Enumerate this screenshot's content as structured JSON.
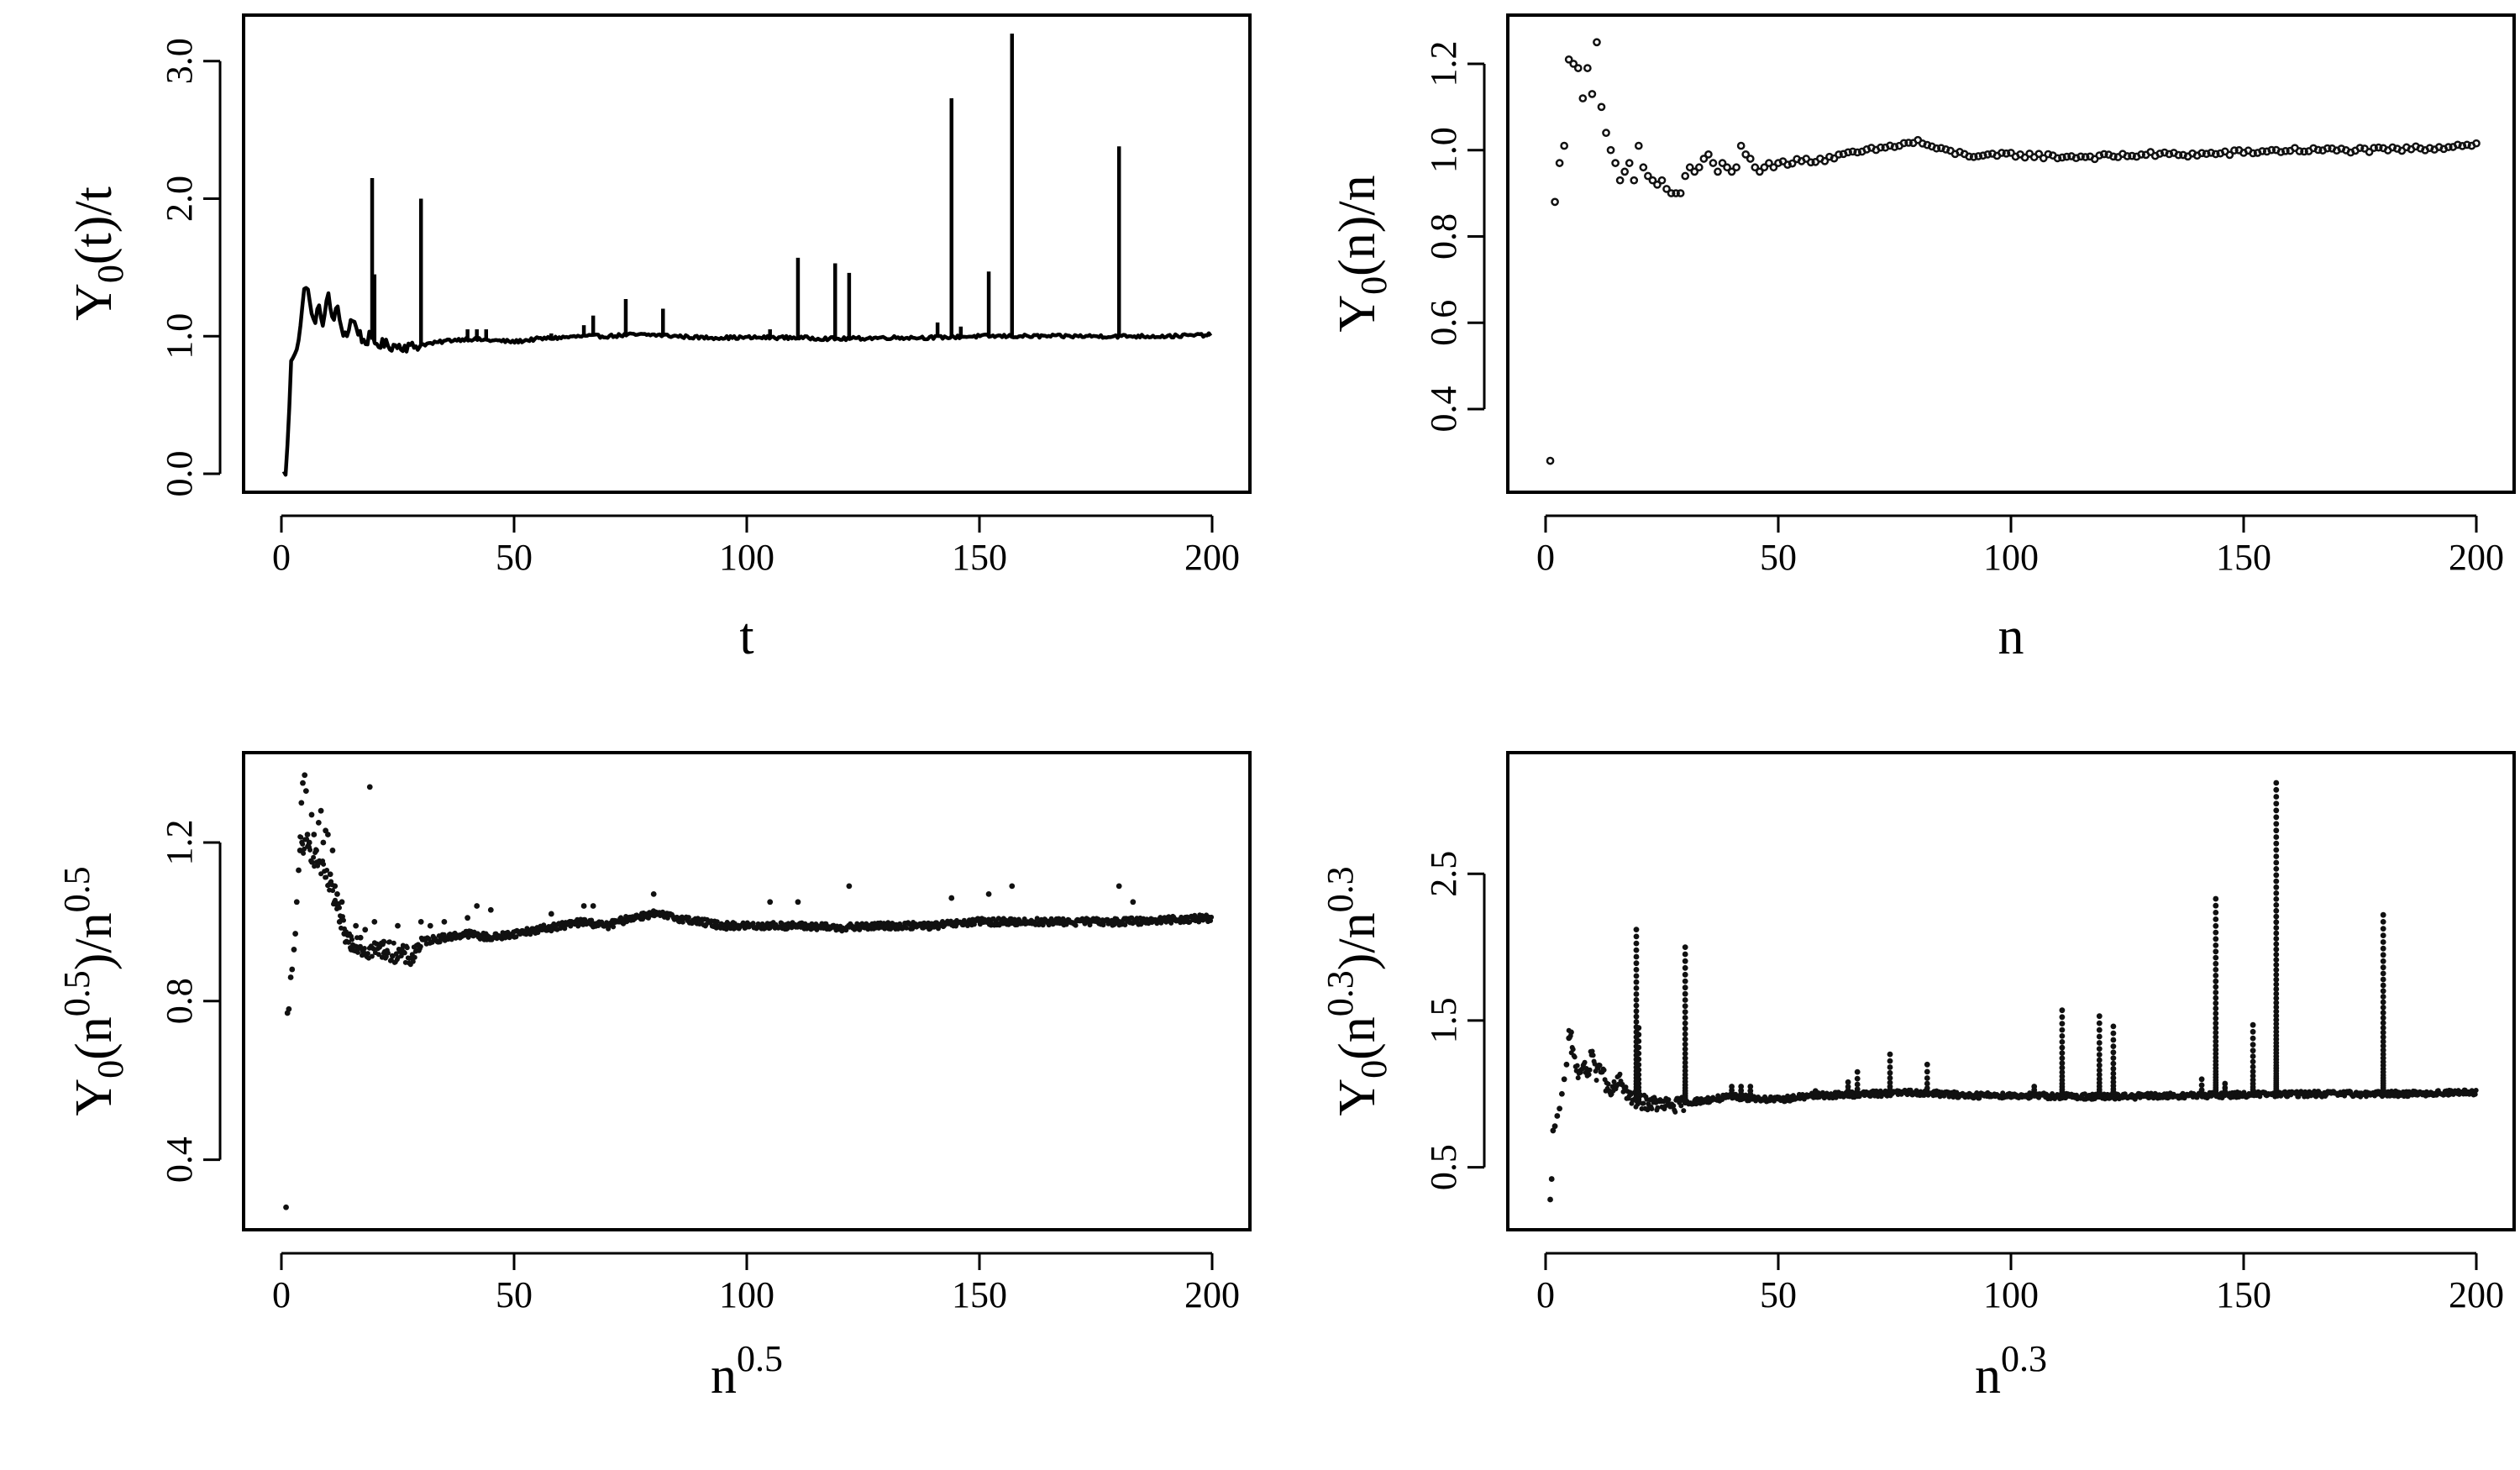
{
  "figure": {
    "panels": [
      {
        "id": "tl",
        "xlabel": {
          "text": "t"
        },
        "ylabel": {
          "base": "Y",
          "sub": "0",
          "mid": "(t)/t"
        },
        "xticks": [
          "0",
          "50",
          "100",
          "150",
          "200"
        ],
        "yticks": [
          "0.0",
          "1.0",
          "2.0",
          "3.0"
        ]
      },
      {
        "id": "tr",
        "xlabel": {
          "text": "n"
        },
        "ylabel": {
          "base": "Y",
          "sub": "0",
          "mid": "(n)/n"
        },
        "xticks": [
          "0",
          "50",
          "100",
          "150",
          "200"
        ],
        "yticks": [
          "0.4",
          "0.6",
          "0.8",
          "1.0",
          "1.2"
        ]
      },
      {
        "id": "bl",
        "xlabel": {
          "text": "n",
          "sup": "0.5"
        },
        "ylabel": {
          "base": "Y",
          "sub": "0",
          "p1": "(n",
          "sup": "0.5",
          "p2": ")/n",
          "sup2": "0.5"
        },
        "xticks": [
          "0",
          "50",
          "100",
          "150",
          "200"
        ],
        "yticks": [
          "0.4",
          "0.8",
          "1.2"
        ]
      },
      {
        "id": "br",
        "xlabel": {
          "text": "n",
          "sup": "0.3"
        },
        "ylabel": {
          "base": "Y",
          "sub": "0",
          "p1": "(n",
          "sup": "0.3",
          "p2": ")/n",
          "sup2": "0.3"
        },
        "xticks": [
          "0",
          "50",
          "100",
          "150",
          "200"
        ],
        "yticks": [
          "0.5",
          "1.5",
          "2.5"
        ]
      }
    ]
  },
  "chart_data": [
    {
      "type": "line",
      "xlabel": "t",
      "ylabel": "Y0(t)/t",
      "xlim": [
        0,
        200
      ],
      "ylim": [
        0.0,
        3.2
      ],
      "xticks": [
        0,
        50,
        100,
        150,
        200
      ],
      "yticks": [
        0.0,
        1.0,
        2.0,
        3.0
      ],
      "grid": false,
      "baseline": [
        [
          0.5,
          0.0
        ],
        [
          1,
          0.02
        ],
        [
          1.5,
          0.3
        ],
        [
          2,
          0.78
        ],
        [
          2.5,
          0.86
        ],
        [
          3,
          0.9
        ],
        [
          3.5,
          0.95
        ],
        [
          4,
          1.05
        ],
        [
          4.5,
          1.2
        ],
        [
          5,
          1.35
        ],
        [
          5.5,
          1.41
        ],
        [
          6,
          1.25
        ],
        [
          6.5,
          1.15
        ],
        [
          7,
          1.1
        ],
        [
          8,
          1.2
        ],
        [
          9,
          1.1
        ],
        [
          10,
          1.3
        ],
        [
          11,
          1.12
        ],
        [
          12,
          1.2
        ],
        [
          13,
          1.05
        ],
        [
          14,
          1.0
        ],
        [
          15,
          1.12
        ],
        [
          16,
          1.08
        ],
        [
          17,
          1.0
        ],
        [
          18,
          0.95
        ],
        [
          19,
          1.0
        ],
        [
          20,
          0.95
        ],
        [
          22,
          0.94
        ],
        [
          24,
          0.93
        ],
        [
          26,
          0.93
        ],
        [
          28,
          0.92
        ],
        [
          30,
          0.94
        ],
        [
          33,
          0.95
        ],
        [
          36,
          0.97
        ],
        [
          40,
          0.98
        ],
        [
          45,
          0.97
        ],
        [
          50,
          0.96
        ],
        [
          55,
          0.98
        ],
        [
          60,
          0.99
        ],
        [
          65,
          1.0
        ],
        [
          70,
          1.0
        ],
        [
          75,
          1.01
        ],
        [
          80,
          1.01
        ],
        [
          85,
          1.0
        ],
        [
          90,
          0.99
        ],
        [
          95,
          0.99
        ],
        [
          100,
          0.99
        ],
        [
          110,
          0.99
        ],
        [
          120,
          0.98
        ],
        [
          130,
          0.99
        ],
        [
          140,
          0.99
        ],
        [
          150,
          1.0
        ],
        [
          160,
          1.0
        ],
        [
          170,
          1.0
        ],
        [
          180,
          1.0
        ],
        [
          190,
          1.0
        ],
        [
          200,
          1.01
        ]
      ],
      "spikes": [
        [
          19.5,
          2.15
        ],
        [
          20,
          1.45
        ],
        [
          30,
          2.0
        ],
        [
          40,
          1.05
        ],
        [
          42,
          1.05
        ],
        [
          44,
          1.05
        ],
        [
          58,
          1.02
        ],
        [
          65,
          1.08
        ],
        [
          67,
          1.15
        ],
        [
          74,
          1.27
        ],
        [
          82,
          1.2
        ],
        [
          105,
          1.05
        ],
        [
          111,
          1.57
        ],
        [
          119,
          1.53
        ],
        [
          122,
          1.46
        ],
        [
          141,
          1.1
        ],
        [
          144,
          2.73
        ],
        [
          146,
          1.07
        ],
        [
          152,
          1.47
        ],
        [
          157,
          3.2
        ],
        [
          180,
          2.38
        ]
      ]
    },
    {
      "type": "scatter",
      "xlabel": "n",
      "ylabel": "Y0(n)/n",
      "xlim": [
        0,
        200
      ],
      "ylim": [
        0.25,
        1.27
      ],
      "xticks": [
        0,
        50,
        100,
        150,
        200
      ],
      "yticks": [
        0.4,
        0.6,
        0.8,
        1.0,
        1.2
      ],
      "grid": false,
      "early_points": [
        [
          1,
          0.28
        ],
        [
          2,
          0.88
        ],
        [
          3,
          0.97
        ],
        [
          4,
          1.01
        ],
        [
          5,
          1.21
        ],
        [
          6,
          1.2
        ],
        [
          7,
          1.19
        ],
        [
          8,
          1.12
        ],
        [
          9,
          1.19
        ],
        [
          10,
          1.13
        ],
        [
          11,
          1.25
        ],
        [
          12,
          1.1
        ],
        [
          13,
          1.04
        ],
        [
          14,
          1.0
        ],
        [
          15,
          0.97
        ],
        [
          16,
          0.93
        ],
        [
          17,
          0.95
        ],
        [
          18,
          0.97
        ],
        [
          19,
          0.93
        ],
        [
          20,
          1.01
        ],
        [
          21,
          0.96
        ],
        [
          22,
          0.94
        ],
        [
          23,
          0.93
        ],
        [
          24,
          0.92
        ],
        [
          25,
          0.93
        ],
        [
          26,
          0.91
        ],
        [
          27,
          0.9
        ],
        [
          28,
          0.9
        ],
        [
          29,
          0.9
        ],
        [
          30,
          0.94
        ],
        [
          31,
          0.96
        ],
        [
          32,
          0.95
        ],
        [
          33,
          0.96
        ],
        [
          34,
          0.98
        ],
        [
          35,
          0.99
        ],
        [
          36,
          0.97
        ],
        [
          37,
          0.95
        ],
        [
          38,
          0.97
        ],
        [
          39,
          0.96
        ],
        [
          40,
          0.95
        ],
        [
          41,
          0.96
        ],
        [
          42,
          1.01
        ],
        [
          43,
          0.99
        ],
        [
          44,
          0.98
        ],
        [
          45,
          0.96
        ],
        [
          46,
          0.95
        ],
        [
          47,
          0.96
        ],
        [
          48,
          0.97
        ],
        [
          49,
          0.96
        ],
        [
          50,
          0.97
        ]
      ],
      "trend": [
        [
          50,
          0.97
        ],
        [
          60,
          0.98
        ],
        [
          70,
          1.0
        ],
        [
          75,
          1.01
        ],
        [
          80,
          1.02
        ],
        [
          85,
          1.0
        ],
        [
          90,
          0.99
        ],
        [
          95,
          0.985
        ],
        [
          100,
          0.99
        ],
        [
          110,
          0.985
        ],
        [
          120,
          0.985
        ],
        [
          130,
          0.99
        ],
        [
          140,
          0.99
        ],
        [
          150,
          0.995
        ],
        [
          160,
          1.0
        ],
        [
          170,
          1.0
        ],
        [
          180,
          1.0
        ],
        [
          190,
          1.005
        ],
        [
          200,
          1.015
        ]
      ]
    },
    {
      "type": "scatter",
      "xlabel": "n^0.5",
      "ylabel": "Y0(n^0.5)/n^0.5",
      "xlim": [
        0,
        200
      ],
      "ylim": [
        0.27,
        1.38
      ],
      "xticks": [
        0,
        50,
        100,
        150,
        200
      ],
      "yticks": [
        0.4,
        0.8,
        1.2
      ],
      "grid": false,
      "early_points": [
        [
          1,
          0.28
        ],
        [
          1.3,
          0.77
        ],
        [
          1.6,
          0.78
        ],
        [
          2,
          0.86
        ],
        [
          2.3,
          0.88
        ],
        [
          2.7,
          0.93
        ],
        [
          3,
          0.97
        ],
        [
          3.3,
          1.05
        ],
        [
          3.7,
          1.13
        ],
        [
          4,
          1.18
        ],
        [
          4.3,
          1.3
        ],
        [
          4.6,
          1.35
        ],
        [
          5,
          1.37
        ],
        [
          5.3,
          1.33
        ],
        [
          5.6,
          1.22
        ],
        [
          6,
          1.2
        ],
        [
          6.5,
          1.27
        ],
        [
          7,
          1.22
        ],
        [
          7.5,
          1.18
        ],
        [
          8,
          1.25
        ],
        [
          8.5,
          1.28
        ],
        [
          9,
          1.2
        ],
        [
          9.5,
          1.23
        ],
        [
          10,
          1.22
        ],
        [
          10.5,
          1.12
        ],
        [
          11,
          1.18
        ],
        [
          11.5,
          1.09
        ],
        [
          12,
          1.07
        ],
        [
          12.5,
          1.0
        ],
        [
          13,
          1.05
        ],
        [
          13.5,
          0.97
        ],
        [
          14,
          0.95
        ],
        [
          15,
          0.93
        ],
        [
          16,
          0.99
        ],
        [
          17,
          0.96
        ],
        [
          18,
          0.98
        ],
        [
          19,
          1.34
        ],
        [
          20,
          1.0
        ],
        [
          22,
          0.95
        ],
        [
          25,
          0.99
        ],
        [
          30,
          1.0
        ],
        [
          32,
          0.99
        ],
        [
          35,
          1.0
        ],
        [
          40,
          1.01
        ],
        [
          42,
          1.04
        ],
        [
          45,
          1.03
        ],
        [
          58,
          1.02
        ],
        [
          65,
          1.04
        ],
        [
          67,
          1.04
        ],
        [
          80,
          1.07
        ],
        [
          105,
          1.05
        ],
        [
          111,
          1.05
        ],
        [
          122,
          1.09
        ],
        [
          144,
          1.06
        ],
        [
          152,
          1.07
        ],
        [
          157,
          1.09
        ],
        [
          180,
          1.09
        ],
        [
          183,
          1.05
        ]
      ],
      "trend": [
        [
          4,
          1.2
        ],
        [
          6,
          1.18
        ],
        [
          8,
          1.15
        ],
        [
          10,
          1.1
        ],
        [
          12,
          1.03
        ],
        [
          14,
          0.96
        ],
        [
          16,
          0.95
        ],
        [
          18,
          0.93
        ],
        [
          20,
          0.93
        ],
        [
          22,
          0.93
        ],
        [
          25,
          0.92
        ],
        [
          28,
          0.91
        ],
        [
          30,
          0.95
        ],
        [
          35,
          0.96
        ],
        [
          40,
          0.97
        ],
        [
          45,
          0.96
        ],
        [
          50,
          0.97
        ],
        [
          55,
          0.98
        ],
        [
          60,
          0.99
        ],
        [
          65,
          1.0
        ],
        [
          70,
          0.99
        ],
        [
          75,
          1.01
        ],
        [
          80,
          1.02
        ],
        [
          85,
          1.01
        ],
        [
          90,
          1.0
        ],
        [
          95,
          0.99
        ],
        [
          100,
          0.99
        ],
        [
          110,
          0.99
        ],
        [
          120,
          0.985
        ],
        [
          130,
          0.99
        ],
        [
          140,
          0.99
        ],
        [
          150,
          1.0
        ],
        [
          160,
          1.0
        ],
        [
          170,
          1.0
        ],
        [
          180,
          1.0
        ],
        [
          190,
          1.005
        ],
        [
          200,
          1.01
        ]
      ]
    },
    {
      "type": "scatter",
      "xlabel": "n^0.3",
      "ylabel": "Y0(n^0.3)/n^0.3",
      "xlim": [
        0,
        200
      ],
      "ylim": [
        0.2,
        3.2
      ],
      "xticks": [
        0,
        50,
        100,
        150,
        200
      ],
      "yticks": [
        0.5,
        1.5,
        2.5
      ],
      "grid": false,
      "early_points": [
        [
          1,
          0.28
        ],
        [
          1.3,
          0.42
        ],
        [
          1.6,
          0.75
        ],
        [
          2,
          0.78
        ],
        [
          2.5,
          0.85
        ],
        [
          3,
          0.9
        ],
        [
          3.5,
          1.0
        ],
        [
          4,
          1.1
        ],
        [
          4.5,
          1.2
        ],
        [
          5,
          1.38
        ],
        [
          5.5,
          1.42
        ]
      ],
      "trend": [
        [
          5,
          1.4
        ],
        [
          6,
          1.25
        ],
        [
          7,
          1.15
        ],
        [
          8,
          1.2
        ],
        [
          9,
          1.12
        ],
        [
          10,
          1.3
        ],
        [
          11,
          1.12
        ],
        [
          12,
          1.2
        ],
        [
          13,
          1.05
        ],
        [
          14,
          1.0
        ],
        [
          16,
          1.1
        ],
        [
          18,
          0.97
        ],
        [
          20,
          0.95
        ],
        [
          24,
          0.93
        ],
        [
          28,
          0.92
        ],
        [
          30,
          0.94
        ],
        [
          35,
          0.96
        ],
        [
          40,
          0.98
        ],
        [
          45,
          0.97
        ],
        [
          50,
          0.96
        ],
        [
          55,
          0.98
        ],
        [
          60,
          0.99
        ],
        [
          70,
          1.0
        ],
        [
          80,
          1.01
        ],
        [
          90,
          0.99
        ],
        [
          100,
          0.99
        ],
        [
          120,
          0.98
        ],
        [
          140,
          0.99
        ],
        [
          160,
          1.0
        ],
        [
          180,
          1.0
        ],
        [
          200,
          1.01
        ]
      ],
      "spikes": [
        [
          19.5,
          2.12
        ],
        [
          20,
          1.45
        ],
        [
          30,
          2.0
        ],
        [
          40,
          1.05
        ],
        [
          42,
          1.05
        ],
        [
          44,
          1.05
        ],
        [
          58,
          1.02
        ],
        [
          65,
          1.08
        ],
        [
          67,
          1.15
        ],
        [
          74,
          1.27
        ],
        [
          82,
          1.2
        ],
        [
          105,
          1.05
        ],
        [
          111,
          1.57
        ],
        [
          119,
          1.53
        ],
        [
          122,
          1.46
        ],
        [
          141,
          1.1
        ],
        [
          144,
          2.33
        ],
        [
          146,
          1.07
        ],
        [
          152,
          1.47
        ],
        [
          157,
          3.12
        ],
        [
          180,
          2.22
        ]
      ]
    }
  ]
}
